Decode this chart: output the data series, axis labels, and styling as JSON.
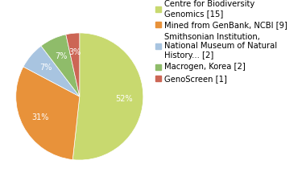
{
  "labels": [
    "Centre for Biodiversity\nGenomics [15]",
    "Mined from GenBank, NCBI [9]",
    "Smithsonian Institution,\nNational Museum of Natural\nHistory... [2]",
    "Macrogen, Korea [2]",
    "GenoScreen [1]"
  ],
  "values": [
    15,
    9,
    2,
    2,
    1
  ],
  "colors": [
    "#c8d96f",
    "#e8923a",
    "#a8c4e0",
    "#8fbc6a",
    "#cc6655"
  ],
  "startangle": 90,
  "background_color": "#ffffff",
  "fontsize": 7.0,
  "legend_fontsize": 7.2
}
